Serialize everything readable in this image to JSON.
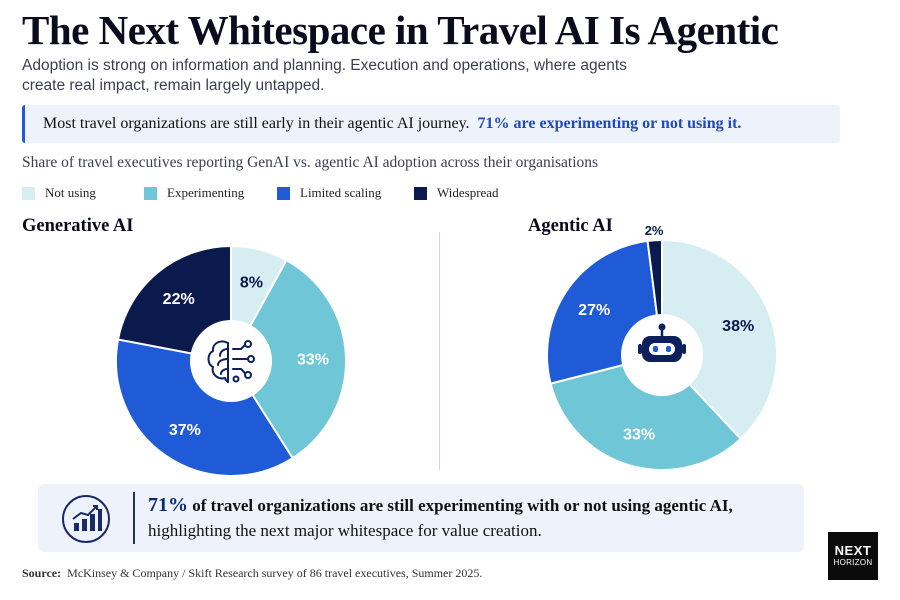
{
  "header": {
    "title": "The Next Whitespace in Travel AI Is Agentic",
    "subtitle": "Adoption is strong on information and planning. Execution and operations, where agents create real impact, remain largely untapped."
  },
  "callout": {
    "text": "Most travel organizations are still early in their agentic AI journey.",
    "highlight": "71% are experimenting or not using it.",
    "accent_color": "#1f5bd6"
  },
  "chart_caption": "Share of travel executives reporting GenAI vs. agentic AI adoption across their organisations",
  "legend": [
    {
      "label": "Not using",
      "color": "#d6edf2"
    },
    {
      "label": "Experimenting",
      "color": "#6ec6d6"
    },
    {
      "label": "Limited scaling",
      "color": "#1f5bd6"
    },
    {
      "label": "Widespread",
      "color": "#0b1a4d"
    }
  ],
  "chart_data": [
    {
      "type": "pie",
      "title": "Generative AI",
      "center_icon": "brain-circuit-icon",
      "categories": [
        "Not using",
        "Experimenting",
        "Limited scaling",
        "Widespread"
      ],
      "values": [
        8,
        33,
        37,
        22
      ],
      "labels": [
        "8%",
        "33%",
        "37%",
        "22%"
      ]
    },
    {
      "type": "pie",
      "title": "Agentic AI",
      "center_icon": "robot-icon",
      "categories": [
        "Not using",
        "Experimenting",
        "Limited scaling",
        "Widespread"
      ],
      "values": [
        38,
        33,
        27,
        2
      ],
      "labels": [
        "38%",
        "33%",
        "27%",
        "2%"
      ]
    }
  ],
  "summary": {
    "icon": "growth-chart-icon",
    "big": "71%",
    "bold": "of travel organizations are still experimenting with or not using agentic AI,",
    "rest": "highlighting the next major whitespace for value creation."
  },
  "source": {
    "label": "Source:",
    "text": "McKinsey & Company / Skift Research survey of 86 travel executives, Summer 2025."
  },
  "logo": {
    "line1": "NEXT",
    "line2": "HORIZON"
  }
}
